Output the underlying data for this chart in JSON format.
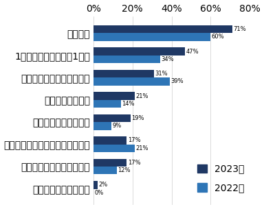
{
  "categories": [
    "すべて対面で参加した",
    "社員面談（選考を含まず）",
    "就活セミナー・合同企業イベント",
    "大人数での企業説明会",
    "少人数での座談会",
    "インターンシップイベント",
    "1次面接～最終面接の1つ前",
    "最終面接"
  ],
  "values_2023": [
    2,
    17,
    17,
    19,
    21,
    31,
    47,
    71
  ],
  "values_2022": [
    0,
    12,
    21,
    9,
    14,
    39,
    34,
    60
  ],
  "color_2023": "#1f3864",
  "color_2022": "#2e75b6",
  "xlim": [
    0,
    80
  ],
  "xticks": [
    0,
    20,
    40,
    60,
    80
  ],
  "xtick_labels": [
    "0%",
    "20%",
    "40%",
    "60%",
    "80%"
  ],
  "legend_2023": "2023卒",
  "legend_2022": "2022卒",
  "bar_height": 0.35,
  "fontsize_labels": 6.5,
  "fontsize_ticks": 6.5,
  "fontsize_values": 6.0,
  "fontsize_legend": 7.0
}
